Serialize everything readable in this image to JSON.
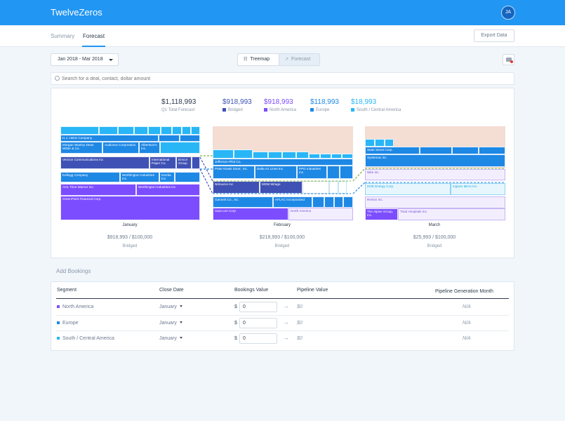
{
  "app": {
    "title": "TwelveZeros",
    "avatar_initials": "JA"
  },
  "nav": {
    "tabs": [
      {
        "label": "Summary"
      },
      {
        "label": "Forecast",
        "active": true
      }
    ],
    "export_label": "Export Data"
  },
  "toolbar": {
    "date_range": "Jan 2018 - Mar 2018",
    "view_toggle": [
      {
        "label": "Treemap",
        "icon": "grid-icon",
        "active": true
      },
      {
        "label": "Forecast",
        "icon": "trend-icon",
        "active": false
      }
    ]
  },
  "search": {
    "placeholder": "Search for a deal, contact, dollar amount"
  },
  "colors": {
    "primary": "#2196f3",
    "bridged": "#3f51b5",
    "north_america": "#7c4dff",
    "europe": "#1e88e5",
    "south_central_america": "#29b6f6",
    "forecast_bg": "#f4ddd3"
  },
  "forecast": {
    "totals": [
      {
        "value": "$1,118,993",
        "label": "Q1 Total Forecast",
        "color": "#2d3a4b"
      },
      {
        "value": "$918,993",
        "label": "Bridged",
        "color": "#3f51b5"
      },
      {
        "value": "$918,993",
        "label": "North America",
        "color": "#7c4dff"
      },
      {
        "value": "$118,993",
        "label": "Europe",
        "color": "#1e88e5"
      },
      {
        "value": "$18,993",
        "label": "South / Central America",
        "color": "#29b6f6"
      }
    ],
    "months": [
      {
        "name": "January",
        "amount": "$918,993 / $100,000",
        "status": "Bridged",
        "deals": [
          "H.J. Heinz Company",
          "Morgan Stanley Dean Witter & Co.",
          "Audiovox Corporation",
          "Albertson's Inc.",
          "Verizon Communications Inc",
          "International Paper Co.",
          "Emcor Group",
          "Kellogg Company",
          "Worthington Industries Inc.",
          "DaVita Inc.",
          "AOL Time Warner Inc.",
          "Worthington Industries Inc",
          "GreenPoint Financial Corp."
        ]
      },
      {
        "name": "February",
        "amount": "$218,993 / $100,000",
        "status": "Bridged",
        "deals": [
          "Jefferson-Pilot Co.",
          "Peter Kiewit Sons', Inc.",
          "Delta Air Lines Inc.",
          "PPG Industries Inc.",
          "NiSource Inc",
          "MGM Mirage",
          "Gannett Co., Inc.",
          "AFLAC Incorporated",
          "Sara Lee Corp",
          "North America"
        ]
      },
      {
        "name": "March",
        "amount": "$25,993 / $100,000",
        "status": "Bridged",
        "deals": [
          "State Street Corp.",
          "Systemax Inc.",
          "Nike Inc.",
          "DGE Energy Corp.",
          "Ingram Micro Inc.",
          "Revlon Inc.",
          "The Alpine Group, Inc.",
          "Triad Hospitals Inc."
        ]
      }
    ]
  },
  "bookings": {
    "title": "Add Bookings",
    "headers": {
      "segment": "Segment",
      "close_date": "Close Date",
      "bookings_value": "Bookings Value",
      "pipeline_value": "Pipeline Value",
      "pipeline_month": "Pipeline Generation Month"
    },
    "rows": [
      {
        "segment": "North America",
        "color": "#7c4dff",
        "close_date": "January",
        "currency": "$",
        "value": "0",
        "pipeline": "$0",
        "month": "N/A"
      },
      {
        "segment": "Europe",
        "color": "#1e88e5",
        "close_date": "January",
        "currency": "$",
        "value": "0",
        "pipeline": "$0",
        "month": "N/A"
      },
      {
        "segment": "South / Central America",
        "color": "#29b6f6",
        "close_date": "January",
        "currency": "$",
        "value": "0",
        "pipeline": "$0",
        "month": "N/A"
      }
    ]
  }
}
